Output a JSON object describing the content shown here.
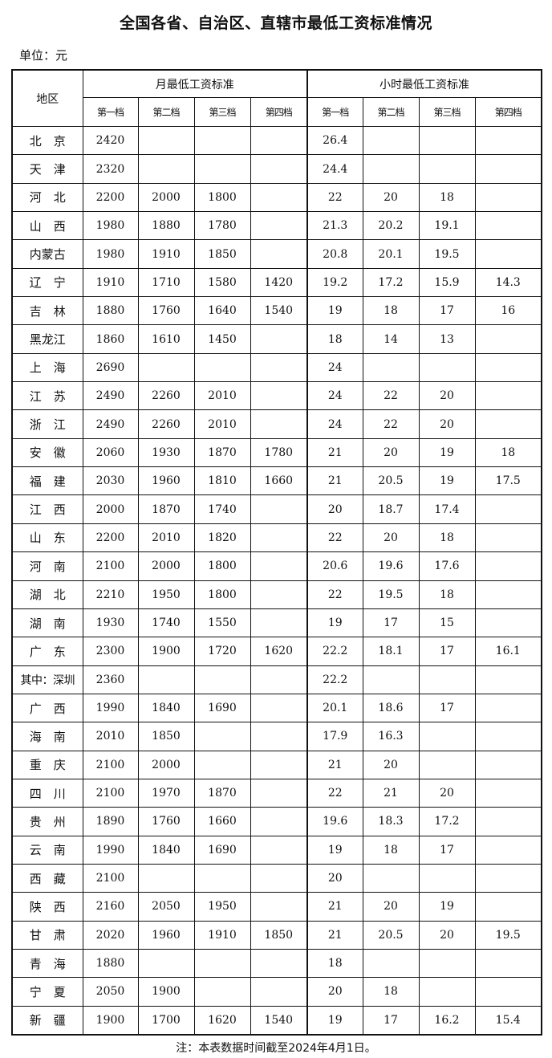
{
  "title": "全国各省、自治区、直辖市最低工资标准情况",
  "unit": "单位：元",
  "header": {
    "region": "地区",
    "monthly": "月最低工资标准",
    "hourly": "小时最低工资标准",
    "tiers": [
      "第一档",
      "第二档",
      "第三档",
      "第四档"
    ]
  },
  "rows": [
    {
      "region": "北京",
      "monthly": [
        "2420",
        "",
        "",
        ""
      ],
      "hourly": [
        "26.4",
        "",
        "",
        ""
      ]
    },
    {
      "region": "天津",
      "monthly": [
        "2320",
        "",
        "",
        ""
      ],
      "hourly": [
        "24.4",
        "",
        "",
        ""
      ]
    },
    {
      "region": "河北",
      "monthly": [
        "2200",
        "2000",
        "1800",
        ""
      ],
      "hourly": [
        "22",
        "20",
        "18",
        ""
      ]
    },
    {
      "region": "山西",
      "monthly": [
        "1980",
        "1880",
        "1780",
        ""
      ],
      "hourly": [
        "21.3",
        "20.2",
        "19.1",
        ""
      ]
    },
    {
      "region": "内蒙古",
      "monthly": [
        "1980",
        "1910",
        "1850",
        ""
      ],
      "hourly": [
        "20.8",
        "20.1",
        "19.5",
        ""
      ]
    },
    {
      "region": "辽宁",
      "monthly": [
        "1910",
        "1710",
        "1580",
        "1420"
      ],
      "hourly": [
        "19.2",
        "17.2",
        "15.9",
        "14.3"
      ]
    },
    {
      "region": "吉林",
      "monthly": [
        "1880",
        "1760",
        "1640",
        "1540"
      ],
      "hourly": [
        "19",
        "18",
        "17",
        "16"
      ]
    },
    {
      "region": "黑龙江",
      "monthly": [
        "1860",
        "1610",
        "1450",
        ""
      ],
      "hourly": [
        "18",
        "14",
        "13",
        ""
      ]
    },
    {
      "region": "上海",
      "monthly": [
        "2690",
        "",
        "",
        ""
      ],
      "hourly": [
        "24",
        "",
        "",
        ""
      ]
    },
    {
      "region": "江苏",
      "monthly": [
        "2490",
        "2260",
        "2010",
        ""
      ],
      "hourly": [
        "24",
        "22",
        "20",
        ""
      ]
    },
    {
      "region": "浙江",
      "monthly": [
        "2490",
        "2260",
        "2010",
        ""
      ],
      "hourly": [
        "24",
        "22",
        "20",
        ""
      ]
    },
    {
      "region": "安徽",
      "monthly": [
        "2060",
        "1930",
        "1870",
        "1780"
      ],
      "hourly": [
        "21",
        "20",
        "19",
        "18"
      ]
    },
    {
      "region": "福建",
      "monthly": [
        "2030",
        "1960",
        "1810",
        "1660"
      ],
      "hourly": [
        "21",
        "20.5",
        "19",
        "17.5"
      ]
    },
    {
      "region": "江西",
      "monthly": [
        "2000",
        "1870",
        "1740",
        ""
      ],
      "hourly": [
        "20",
        "18.7",
        "17.4",
        ""
      ]
    },
    {
      "region": "山东",
      "monthly": [
        "2200",
        "2010",
        "1820",
        ""
      ],
      "hourly": [
        "22",
        "20",
        "18",
        ""
      ]
    },
    {
      "region": "河南",
      "monthly": [
        "2100",
        "2000",
        "1800",
        ""
      ],
      "hourly": [
        "20.6",
        "19.6",
        "17.6",
        ""
      ]
    },
    {
      "region": "湖北",
      "monthly": [
        "2210",
        "1950",
        "1800",
        ""
      ],
      "hourly": [
        "22",
        "19.5",
        "18",
        ""
      ]
    },
    {
      "region": "湖南",
      "monthly": [
        "1930",
        "1740",
        "1550",
        ""
      ],
      "hourly": [
        "19",
        "17",
        "15",
        ""
      ]
    },
    {
      "region": "广东",
      "monthly": [
        "2300",
        "1900",
        "1720",
        "1620"
      ],
      "hourly": [
        "22.2",
        "18.1",
        "17",
        "16.1"
      ]
    },
    {
      "region": "其中：深圳",
      "monthly": [
        "2360",
        "",
        "",
        ""
      ],
      "hourly": [
        "22.2",
        "",
        "",
        ""
      ]
    },
    {
      "region": "广西",
      "monthly": [
        "1990",
        "1840",
        "1690",
        ""
      ],
      "hourly": [
        "20.1",
        "18.6",
        "17",
        ""
      ]
    },
    {
      "region": "海南",
      "monthly": [
        "2010",
        "1850",
        "",
        ""
      ],
      "hourly": [
        "17.9",
        "16.3",
        "",
        ""
      ]
    },
    {
      "region": "重庆",
      "monthly": [
        "2100",
        "2000",
        "",
        ""
      ],
      "hourly": [
        "21",
        "20",
        "",
        ""
      ]
    },
    {
      "region": "四川",
      "monthly": [
        "2100",
        "1970",
        "1870",
        ""
      ],
      "hourly": [
        "22",
        "21",
        "20",
        ""
      ]
    },
    {
      "region": "贵州",
      "monthly": [
        "1890",
        "1760",
        "1660",
        ""
      ],
      "hourly": [
        "19.6",
        "18.3",
        "17.2",
        ""
      ]
    },
    {
      "region": "云南",
      "monthly": [
        "1990",
        "1840",
        "1690",
        ""
      ],
      "hourly": [
        "19",
        "18",
        "17",
        ""
      ]
    },
    {
      "region": "西藏",
      "monthly": [
        "2100",
        "",
        "",
        ""
      ],
      "hourly": [
        "20",
        "",
        "",
        ""
      ]
    },
    {
      "region": "陕西",
      "monthly": [
        "2160",
        "2050",
        "1950",
        ""
      ],
      "hourly": [
        "21",
        "20",
        "19",
        ""
      ]
    },
    {
      "region": "甘肃",
      "monthly": [
        "2020",
        "1960",
        "1910",
        "1850"
      ],
      "hourly": [
        "21",
        "20.5",
        "20",
        "19.5"
      ]
    },
    {
      "region": "青海",
      "monthly": [
        "1880",
        "",
        "",
        ""
      ],
      "hourly": [
        "18",
        "",
        "",
        ""
      ]
    },
    {
      "region": "宁夏",
      "monthly": [
        "2050",
        "1900",
        "",
        ""
      ],
      "hourly": [
        "20",
        "18",
        "",
        ""
      ]
    },
    {
      "region": "新疆",
      "monthly": [
        "1900",
        "1700",
        "1620",
        "1540"
      ],
      "hourly": [
        "19",
        "17",
        "16.2",
        "15.4"
      ]
    }
  ],
  "note": "注：本表数据时间截至2024年4月1日。"
}
